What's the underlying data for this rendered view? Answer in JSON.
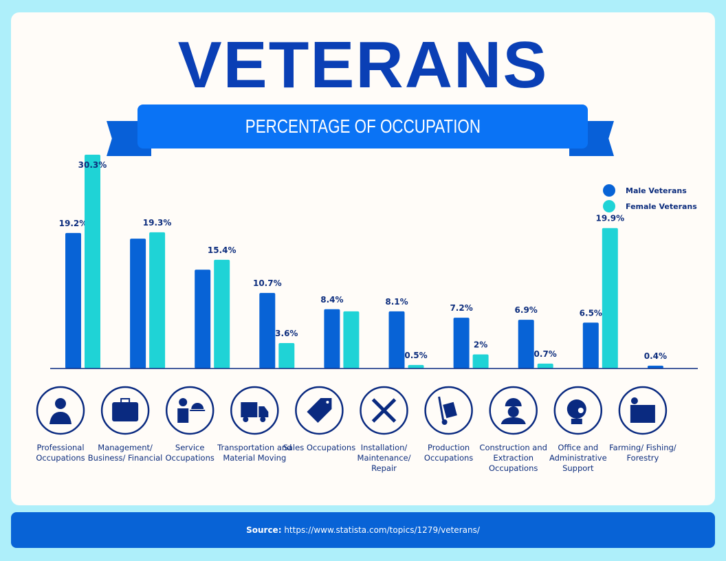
{
  "title": "VETERANS",
  "subtitle": "PERCENTAGE OF OCCUPATION",
  "footer": {
    "source_label": "Source:",
    "source_text": "https://www.statista.com/topics/1279/veterans/"
  },
  "colors": {
    "male": "#0863d6",
    "female": "#1fd3d6",
    "text": "#0d2d7d",
    "title": "#0a3fb5"
  },
  "chart_data": {
    "type": "bar",
    "title": "PERCENTAGE OF OCCUPATION",
    "legend_position": "top-right",
    "grid": false,
    "ylim": [
      0,
      30.3
    ],
    "categories": [
      "Professional Occupations",
      "Management/ Business/ Financial",
      "Service Occupations",
      "Transportation and Material Moving",
      "Sales Occupations",
      "Installation/ Maintenance/ Repair",
      "Production Occupations",
      "Construction and Extraction Occupations",
      "Office and Administrative Support",
      "Farming/ Fishing/ Forestry"
    ],
    "icons": [
      "businessman-icon",
      "briefcase-icon",
      "waiter-icon",
      "truck-icon",
      "price-tag-icon",
      "tools-icon",
      "hand-truck-icon",
      "construction-worker-icon",
      "support-headset-icon",
      "farm-field-icon"
    ],
    "series": [
      {
        "name": "Male Veterans",
        "values": [
          19.2,
          18.4,
          14.0,
          10.7,
          8.4,
          8.1,
          7.2,
          6.9,
          6.5,
          0.4
        ],
        "labels": [
          "19.2%",
          null,
          null,
          "10.7%",
          "8.4%",
          "8.1%",
          "7.2%",
          "6.9%",
          "6.5%",
          "0.4%"
        ]
      },
      {
        "name": "Female Veterans",
        "values": [
          30.3,
          19.3,
          15.4,
          3.6,
          8.1,
          0.5,
          2.0,
          0.7,
          19.9,
          0
        ],
        "labels": [
          "30.3%",
          "19.3%",
          "15.4%",
          "3.6%",
          null,
          "0.5%",
          "2%",
          "0.7%",
          "19.9%",
          null
        ]
      }
    ]
  }
}
